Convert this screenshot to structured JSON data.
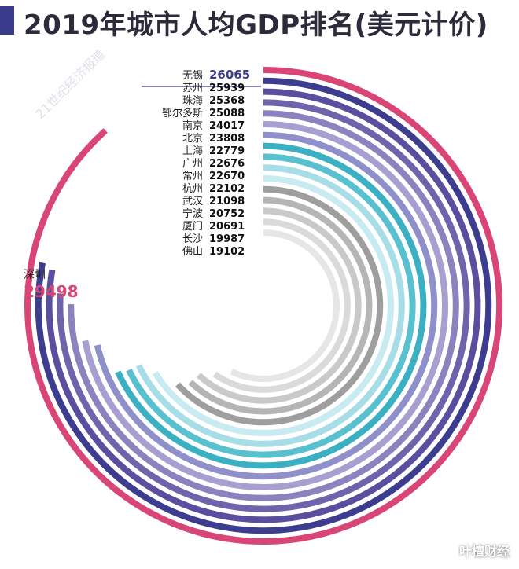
{
  "title": "2019年城市人均GDP排名(美元计价)",
  "watermark_text": "叶檀财经",
  "background_watermark": "21世纪经济报道",
  "colors": {
    "title_accent": "#3a3a8c",
    "label_value": "#111111",
    "top_value": "#3d3d8f",
    "highlight_value": "#d94676"
  },
  "chart_data": {
    "type": "radial-bar",
    "title": "2019年城市人均GDP排名(美元计价)",
    "unit": "美元",
    "categories": [
      "深圳",
      "无锡",
      "苏州",
      "珠海",
      "鄂尔多斯",
      "南京",
      "北京",
      "上海",
      "广州",
      "常州",
      "杭州",
      "武汉",
      "宁波",
      "厦门",
      "长沙",
      "佛山"
    ],
    "values": [
      29498,
      26065,
      25939,
      25368,
      25088,
      24017,
      23808,
      22779,
      22676,
      22670,
      22102,
      21098,
      20752,
      20691,
      19987,
      19102
    ],
    "ring_colors": [
      "#d94676",
      "#3d3d8f",
      "#5a4f9e",
      "#6f64ab",
      "#8c82bd",
      "#a89fd0",
      "#8f8fc9",
      "#3bb0c2",
      "#59c0d0",
      "#a7dde6",
      "#c7ebf0",
      "#9e9e9e",
      "#b5b5b5",
      "#c9c9c9",
      "#dadada",
      "#e6e6e6"
    ],
    "max_value": 29498,
    "highlight": {
      "city": "深圳",
      "value": "29498"
    }
  }
}
